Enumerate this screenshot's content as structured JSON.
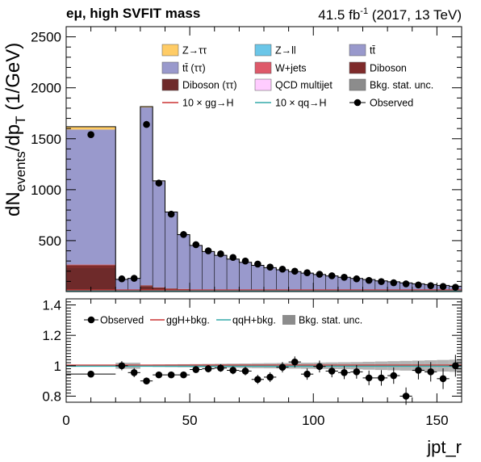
{
  "header": {
    "channel_title": "eμ, high SVFIT mass",
    "lumi_prefix": "41.5 fb",
    "lumi_exp": "-1",
    "lumi_suffix": " (2017, 13 TeV)"
  },
  "axis": {
    "xlabel": "jpt_r",
    "ylabel_main": "dN",
    "ylabel_sub": "events",
    "ylabel_mid": "/dp",
    "ylabel_sub2": "T",
    "ylabel_unit": " (1/GeV)"
  },
  "chart_data": [
    {
      "type": "bar",
      "stacked": true,
      "xlim": [
        0,
        160
      ],
      "ylim": [
        0,
        2600
      ],
      "x_ticks": [
        "0",
        "50",
        "100",
        "150"
      ],
      "y_ticks": [
        "500",
        "1000",
        "1500",
        "2000",
        "2500"
      ],
      "bin_edges": [
        0,
        20,
        25,
        30,
        35,
        40,
        45,
        50,
        55,
        60,
        65,
        70,
        75,
        80,
        85,
        90,
        95,
        100,
        105,
        110,
        115,
        120,
        125,
        130,
        135,
        140,
        145,
        150,
        155,
        160
      ],
      "series": [
        {
          "name": "Diboson (ττ)",
          "color": "#6e2a2a",
          "values": [
            230,
            0,
            0,
            50,
            32,
            25,
            20,
            15,
            12,
            10,
            8,
            7,
            6,
            5,
            4,
            4,
            3,
            3,
            3,
            2,
            2,
            2,
            2,
            2,
            1,
            1,
            1,
            1,
            1
          ]
        },
        {
          "name": "Diboson",
          "color": "#7f2b2b",
          "values": [
            30,
            0,
            0,
            10,
            8,
            6,
            5,
            4,
            3,
            3,
            3,
            2,
            2,
            2,
            2,
            1,
            1,
            1,
            1,
            1,
            1,
            1,
            1,
            1,
            1,
            1,
            1,
            1,
            1
          ]
        },
        {
          "name": "W+jets",
          "color": "#de5a6a",
          "values": [
            5,
            0,
            0,
            2,
            2,
            1,
            1,
            1,
            1,
            1,
            1,
            1,
            1,
            1,
            1,
            1,
            1,
            1,
            1,
            1,
            1,
            1,
            0,
            0,
            0,
            0,
            0,
            0,
            0
          ]
        },
        {
          "name": "tt̄ (ττ)",
          "color": "#9999cc",
          "values": [
            1325,
            120,
            130,
            1745,
            1040,
            745,
            530,
            430,
            375,
            340,
            305,
            275,
            248,
            226,
            206,
            189,
            175,
            161,
            148,
            136,
            124,
            113,
            101,
            92,
            82,
            73,
            65,
            57,
            50
          ]
        },
        {
          "name": "Z→ττ",
          "color": "#ffcc66",
          "values": [
            28,
            0,
            0,
            8,
            5,
            4,
            3,
            3,
            2,
            2,
            2,
            2,
            1,
            1,
            1,
            1,
            1,
            1,
            1,
            1,
            1,
            1,
            1,
            1,
            1,
            1,
            1,
            1,
            1
          ]
        }
      ],
      "legend_only": [
        {
          "name": "Z→ll",
          "color": "#6bc6e8",
          "kind": "box"
        },
        {
          "name": "tt̄",
          "color": "#9999cc",
          "kind": "box"
        },
        {
          "name": "QCD multijet",
          "color": "#ffccff",
          "kind": "box"
        },
        {
          "name": "Bkg. stat. unc.",
          "color": "#8c8c8c",
          "kind": "box"
        },
        {
          "name": "10 × gg→H",
          "color": "#cc3333",
          "kind": "line"
        },
        {
          "name": "10 × qq→H",
          "color": "#33aaaa",
          "kind": "line"
        },
        {
          "name": "Observed",
          "color": "#000000",
          "kind": "marker"
        }
      ],
      "observed": {
        "name": "Observed",
        "x": [
          10,
          22.5,
          27.5,
          32.5,
          37.5,
          42.5,
          47.5,
          52.5,
          57.5,
          62.5,
          67.5,
          72.5,
          77.5,
          82.5,
          87.5,
          92.5,
          97.5,
          102.5,
          107.5,
          112.5,
          117.5,
          122.5,
          127.5,
          132.5,
          137.5,
          142.5,
          147.5,
          152.5,
          157.5
        ],
        "y": [
          1540,
          125,
          130,
          1640,
          1065,
          760,
          560,
          460,
          400,
          370,
          335,
          300,
          270,
          240,
          220,
          200,
          185,
          170,
          155,
          140,
          125,
          110,
          98,
          87,
          76,
          65,
          58,
          50,
          42
        ]
      }
    },
    {
      "type": "line",
      "xlim": [
        0,
        160
      ],
      "ylim": [
        0.76,
        1.44
      ],
      "y_ticks": [
        "0.8",
        "1",
        "1.2",
        "1.4"
      ],
      "legend": [
        {
          "name": "Observed",
          "kind": "marker"
        },
        {
          "name": "ggH+bkg.",
          "kind": "line",
          "color": "#cc3333"
        },
        {
          "name": "qqH+bkg.",
          "kind": "line",
          "color": "#33aaaa"
        },
        {
          "name": "Bkg. stat. unc.",
          "kind": "box",
          "color": "#8c8c8c"
        }
      ],
      "ratio": {
        "x": [
          10,
          22.5,
          27.5,
          32.5,
          37.5,
          42.5,
          47.5,
          52.5,
          57.5,
          62.5,
          67.5,
          72.5,
          77.5,
          82.5,
          87.5,
          92.5,
          97.5,
          102.5,
          107.5,
          112.5,
          117.5,
          122.5,
          127.5,
          132.5,
          137.5,
          142.5,
          147.5,
          152.5,
          157.5
        ],
        "y": [
          0.945,
          1.0,
          0.955,
          0.9,
          0.94,
          0.94,
          0.94,
          0.975,
          0.98,
          0.985,
          0.97,
          0.965,
          0.91,
          0.925,
          0.99,
          1.025,
          0.945,
          0.995,
          0.965,
          0.955,
          0.96,
          0.92,
          0.92,
          0.935,
          0.8,
          0.97,
          0.96,
          0.915,
          1.0
        ],
        "err": [
          0.01,
          0.03,
          0.03,
          0.012,
          0.015,
          0.017,
          0.02,
          0.022,
          0.024,
          0.025,
          0.026,
          0.028,
          0.03,
          0.032,
          0.034,
          0.036,
          0.037,
          0.039,
          0.041,
          0.043,
          0.045,
          0.048,
          0.051,
          0.054,
          0.057,
          0.06,
          0.064,
          0.068,
          0.072
        ]
      },
      "stat_unc": [
        0.006,
        0.02,
        0.02,
        0.006,
        0.008,
        0.009,
        0.01,
        0.011,
        0.012,
        0.013,
        0.014,
        0.015,
        0.016,
        0.017,
        0.018,
        0.019,
        0.02,
        0.021,
        0.022,
        0.023,
        0.024,
        0.026,
        0.028,
        0.03,
        0.032,
        0.034,
        0.036,
        0.038,
        0.04
      ],
      "ggH_ratio": 1.0,
      "qqH_ratio": 1.0
    }
  ]
}
